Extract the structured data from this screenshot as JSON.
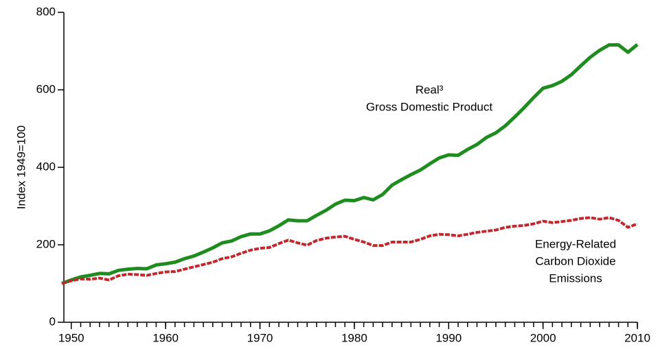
{
  "chart_data": {
    "type": "line",
    "y_label": "Index 1949=100",
    "x": [
      1949,
      1950,
      1951,
      1952,
      1953,
      1954,
      1955,
      1956,
      1957,
      1958,
      1959,
      1960,
      1961,
      1962,
      1963,
      1964,
      1965,
      1966,
      1967,
      1968,
      1969,
      1970,
      1971,
      1972,
      1973,
      1974,
      1975,
      1976,
      1977,
      1978,
      1979,
      1980,
      1981,
      1982,
      1983,
      1984,
      1985,
      1986,
      1987,
      1988,
      1989,
      1990,
      1991,
      1992,
      1993,
      1994,
      1995,
      1996,
      1997,
      1998,
      1999,
      2000,
      2001,
      2002,
      2003,
      2004,
      2005,
      2006,
      2007,
      2008,
      2009,
      2010
    ],
    "series": [
      {
        "color": "#1e8c1e",
        "dash": false,
        "values": [
          100,
          109,
          117,
          121,
          126,
          125,
          134,
          137,
          139,
          138,
          148,
          151,
          155,
          164,
          171,
          181,
          192,
          205,
          210,
          221,
          228,
          228,
          236,
          249,
          264,
          262,
          262,
          276,
          289,
          305,
          315,
          314,
          322,
          316,
          330,
          354,
          368,
          381,
          393,
          409,
          424,
          432,
          431,
          446,
          459,
          477,
          489,
          507,
          530,
          554,
          580,
          604,
          611,
          622,
          639,
          662,
          684,
          702,
          716,
          716,
          697,
          717
        ]
      },
      {
        "color": "#c0282d",
        "dash": true,
        "values": [
          100,
          107,
          112,
          111,
          114,
          109,
          120,
          124,
          123,
          121,
          126,
          130,
          131,
          137,
          143,
          149,
          155,
          164,
          169,
          178,
          186,
          191,
          193,
          203,
          212,
          205,
          199,
          211,
          217,
          220,
          222,
          214,
          207,
          198,
          198,
          207,
          207,
          207,
          214,
          223,
          227,
          226,
          223,
          227,
          232,
          235,
          238,
          245,
          248,
          250,
          254,
          261,
          257,
          260,
          263,
          268,
          270,
          266,
          270,
          263,
          245,
          254
        ]
      }
    ],
    "annotations": [
      {
        "lines": [
          "Real³",
          "Gross Domestic Product"
        ]
      },
      {
        "lines": [
          "Energy-Related",
          "Carbon Dioxide",
          "Emissions"
        ]
      }
    ],
    "xlim": [
      1949,
      2010
    ],
    "ylim": [
      0,
      800
    ],
    "xticks": [
      1950,
      1960,
      1970,
      1980,
      1990,
      2000,
      2010
    ],
    "yticks": [
      0,
      200,
      400,
      600,
      800
    ]
  }
}
